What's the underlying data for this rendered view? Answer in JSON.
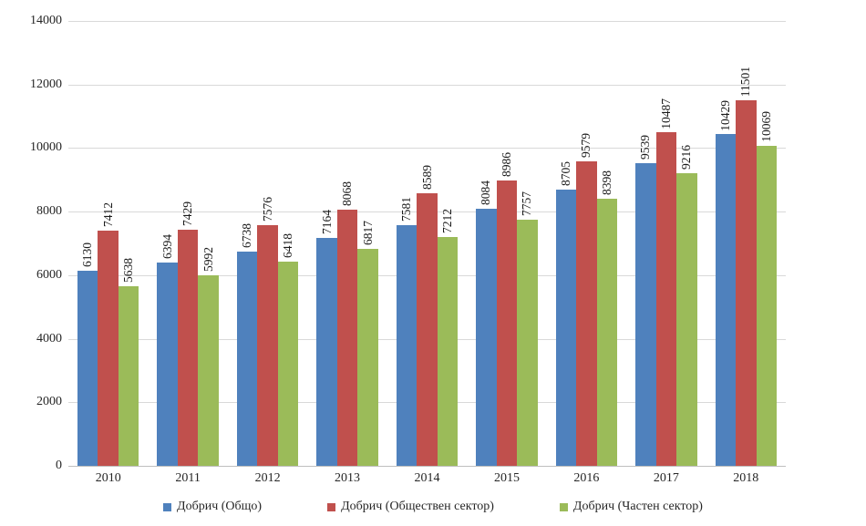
{
  "chart_data": {
    "type": "bar",
    "title": "",
    "xlabel": "",
    "ylabel": "",
    "categories": [
      "2010",
      "2011",
      "2012",
      "2013",
      "2014",
      "2015",
      "2016",
      "2017",
      "2018"
    ],
    "series": [
      {
        "name": "Добрич (Общо)",
        "color": "#4f81bd",
        "values": [
          6130,
          6394,
          6738,
          7164,
          7581,
          8084,
          8705,
          9539,
          10429
        ]
      },
      {
        "name": "Добрич (Обществен сектор)",
        "color": "#c0504d",
        "values": [
          7412,
          7429,
          7576,
          8068,
          8589,
          8986,
          9579,
          10487,
          11501
        ]
      },
      {
        "name": "Добрич (Частен сектор)",
        "color": "#9bbb59",
        "values": [
          5638,
          5992,
          6418,
          6817,
          7212,
          7757,
          8398,
          9216,
          10069
        ]
      }
    ],
    "ylim": [
      0,
      14000
    ],
    "yticks": [
      0,
      2000,
      4000,
      6000,
      8000,
      10000,
      12000,
      14000
    ],
    "grid": "horizontal",
    "legend_position": "bottom",
    "data_labels": "rotated-90-above-bars",
    "colors": {
      "gridline": "#d9d9d9",
      "axis_line": "#bfbfbf",
      "text": "#262626",
      "background": "#ffffff"
    }
  }
}
